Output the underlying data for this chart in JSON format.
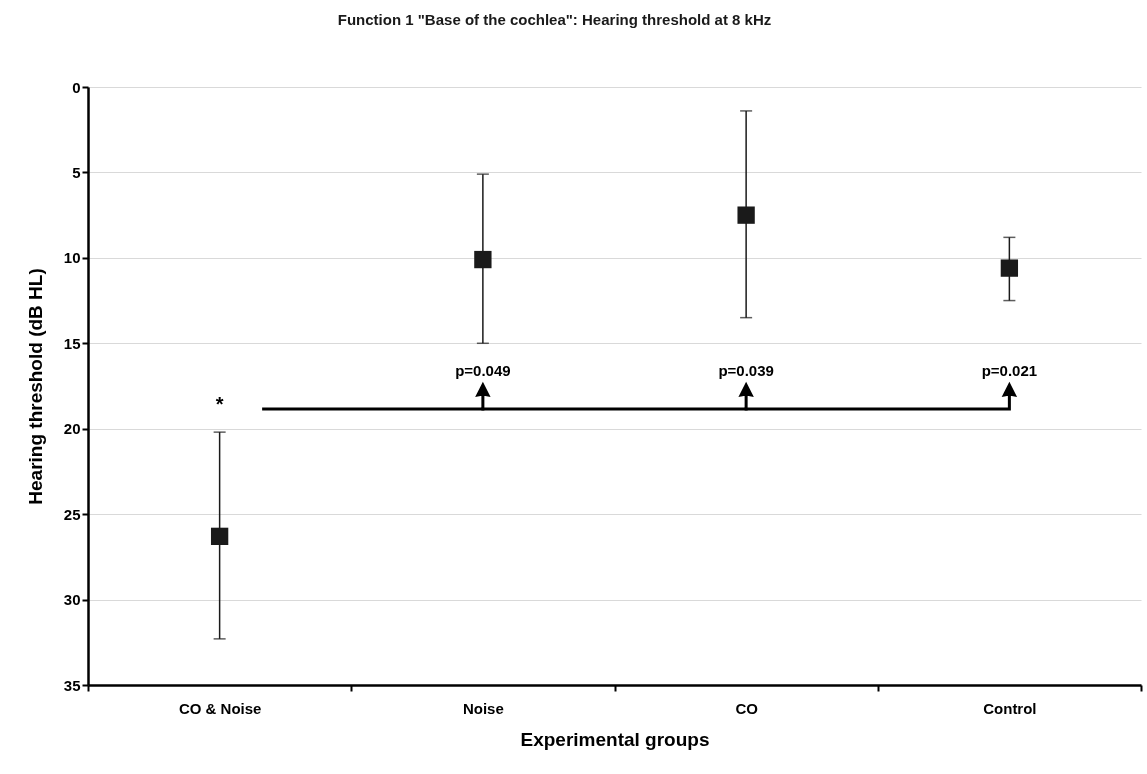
{
  "chart_data": {
    "type": "scatter",
    "title": "Function 1 \"Base of the cochlea\": Hearing threshold at 8 kHz",
    "xlabel": "Experimental groups",
    "ylabel": "Hearing threshold (dB HL)",
    "categories": [
      "CO & Noise",
      "Noise",
      "CO",
      "Control"
    ],
    "series": [
      {
        "color": "#1a1a1a",
        "values": [
          26.3,
          10.1,
          7.5,
          10.6
        ],
        "errors": [
          [
            20.2,
            32.3
          ],
          [
            5.1,
            15.0
          ],
          [
            1.4,
            13.5
          ],
          [
            8.8,
            12.5
          ]
        ]
      }
    ],
    "ylim": [
      35,
      0
    ],
    "yticks": [
      0,
      5,
      10,
      15,
      20,
      25,
      30,
      35
    ],
    "grid": "y",
    "marker": "square",
    "annotations": [
      "*",
      "p=0.049",
      "p=0.039",
      "p=0.021"
    ]
  }
}
